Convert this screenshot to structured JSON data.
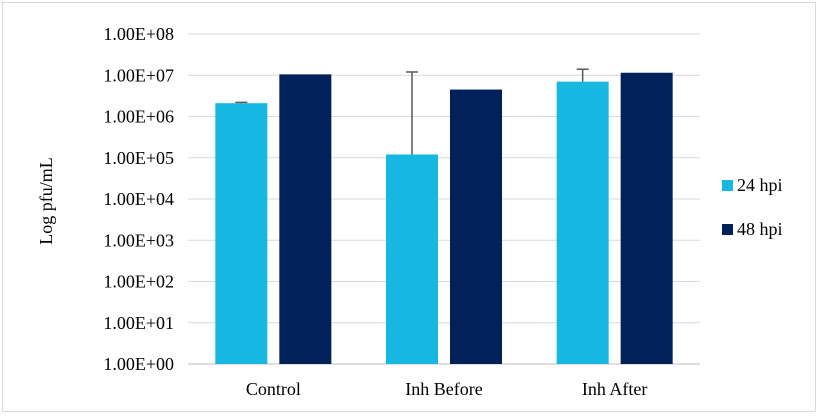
{
  "chart_data": {
    "type": "bar",
    "ylabel": "Log pfu/mL",
    "xlabel": "",
    "title": "",
    "yscale": "log",
    "ylim": [
      1,
      100000000
    ],
    "yticks": [
      1,
      10,
      100,
      1000,
      10000,
      100000,
      1000000,
      10000000,
      100000000
    ],
    "ytick_labels": [
      "1.00E+00",
      "1.00E+01",
      "1.00E+02",
      "1.00E+03",
      "1.00E+04",
      "1.00E+05",
      "1.00E+06",
      "1.00E+07",
      "1.00E+08"
    ],
    "categories": [
      "Control",
      "Inh Before",
      "Inh After"
    ],
    "series": [
      {
        "name": "24 hpi",
        "color": "#16b7e0",
        "values": [
          2100000,
          120000,
          7000000
        ],
        "error_upper": [
          2200000,
          12000000,
          14000000
        ]
      },
      {
        "name": "48 hpi",
        "color": "#00215a",
        "values": [
          10500000,
          4500000,
          11500000
        ],
        "error_upper": [
          null,
          null,
          null
        ]
      }
    ],
    "grid": true,
    "legend": "right"
  }
}
